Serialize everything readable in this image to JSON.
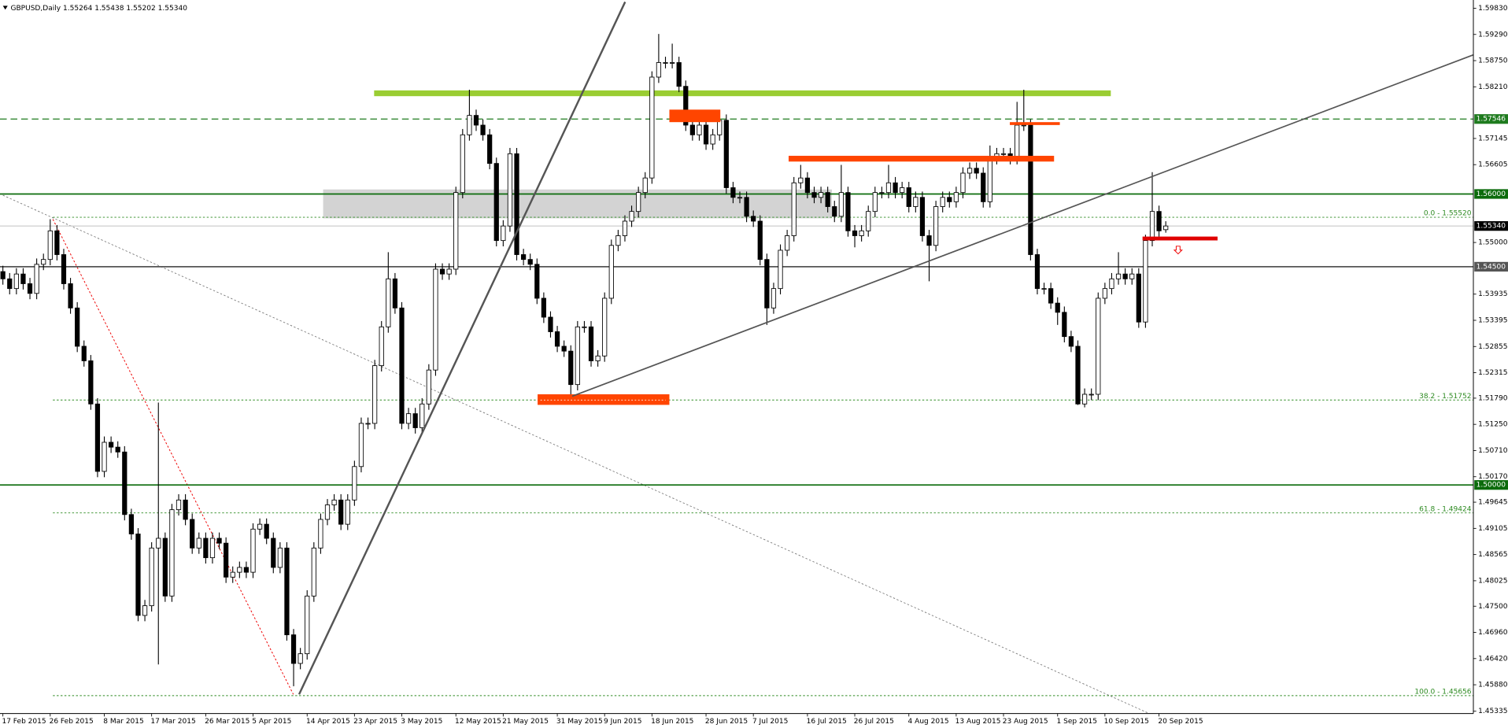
{
  "chart_data": {
    "type": "candlestick",
    "title": "GBPUSD,Daily  1.55264 1.55438 1.55202 1.55340",
    "categories": [
      "17 Feb 2015",
      null,
      null,
      null,
      null,
      null,
      null,
      "26 Feb 2015",
      null,
      null,
      null,
      null,
      null,
      null,
      null,
      "8 Mar 2015",
      null,
      null,
      null,
      null,
      null,
      null,
      "17 Mar 2015",
      null,
      null,
      null,
      null,
      null,
      null,
      null,
      "26 Mar 2015",
      null,
      null,
      null,
      null,
      null,
      null,
      "5 Apr 2015",
      null,
      null,
      null,
      null,
      null,
      null,
      null,
      "14 Apr 2015",
      null,
      null,
      null,
      null,
      null,
      null,
      "23 Apr 2015",
      null,
      null,
      null,
      null,
      null,
      null,
      "3 May 2015",
      null,
      null,
      null,
      null,
      null,
      null,
      null,
      "12 May 2015",
      null,
      null,
      null,
      null,
      null,
      null,
      "21 May 2015",
      null,
      null,
      null,
      null,
      null,
      null,
      null,
      "31 May 2015",
      null,
      null,
      null,
      null,
      null,
      null,
      "9 Jun 2015",
      null,
      null,
      null,
      null,
      null,
      null,
      "18 Jun 2015",
      null,
      null,
      null,
      null,
      null,
      null,
      null,
      "28 Jun 2015",
      null,
      null,
      null,
      null,
      null,
      null,
      "7 Jul 2015",
      null,
      null,
      null,
      null,
      null,
      null,
      null,
      "16 Jul 2015",
      null,
      null,
      null,
      null,
      null,
      null,
      "26 Jul 2015",
      null,
      null,
      null,
      null,
      null,
      null,
      null,
      "4 Aug 2015",
      null,
      null,
      null,
      null,
      null,
      null,
      "13 Aug 2015",
      null,
      null,
      null,
      null,
      null,
      null,
      "23 Aug 2015",
      null,
      null,
      null,
      null,
      null,
      null,
      null,
      "1 Sep 2015",
      null,
      null,
      null,
      null,
      null,
      null,
      "10 Sep 2015",
      null,
      null,
      null,
      null,
      null,
      null,
      null,
      "20 Sep 2015",
      null
    ],
    "open": [
      1.544,
      1.5425,
      1.5405,
      1.5435,
      1.5415,
      1.5395,
      1.5455,
      1.5465,
      1.5524,
      1.5475,
      1.5415,
      1.5365,
      1.5286,
      1.5256,
      1.5167,
      1.5028,
      1.5088,
      1.5078,
      1.5068,
      1.4939,
      1.4899,
      1.4731,
      1.4751,
      1.487,
      1.489,
      1.4771,
      1.4949,
      1.4969,
      1.4929,
      1.487,
      1.489,
      1.485,
      1.489,
      1.488,
      1.481,
      1.482,
      1.483,
      1.482,
      1.4909,
      1.4919,
      1.489,
      1.483,
      1.487,
      1.4691,
      1.4632,
      1.4652,
      1.4771,
      1.487,
      1.4929,
      1.4959,
      1.4969,
      1.4919,
      1.4969,
      1.5038,
      1.5127,
      1.5127,
      1.5246,
      1.5326,
      1.5425,
      1.5365,
      1.5127,
      1.5147,
      1.5118,
      1.5167,
      1.5237,
      1.5445,
      1.5435,
      1.5445,
      1.5603,
      1.5722,
      1.5762,
      1.5742,
      1.5722,
      1.5663,
      1.5504,
      1.5534,
      1.5683,
      1.5475,
      1.5465,
      1.5455,
      1.5385,
      1.5346,
      1.5316,
      1.5286,
      1.5276,
      1.5207,
      1.5326,
      1.5326,
      1.5256,
      1.5266,
      1.5385,
      1.5494,
      1.5514,
      1.5544,
      1.5564,
      1.5603,
      1.5633,
      1.5841,
      1.5871,
      1.5871,
      1.5871,
      1.5822,
      1.5742,
      1.5722,
      1.5742,
      1.5703,
      1.5722,
      1.5752,
      1.5613,
      1.5593,
      1.5593,
      1.5554,
      1.5544,
      1.5465,
      1.5365,
      1.5405,
      1.5484,
      1.5514,
      1.5623,
      1.5633,
      1.5603,
      1.5593,
      1.5603,
      1.5574,
      1.5554,
      1.5603,
      1.5524,
      1.5514,
      1.5524,
      1.5564,
      1.5603,
      1.5603,
      1.5623,
      1.5603,
      1.5613,
      1.5574,
      1.5593,
      1.5514,
      1.5494,
      1.5574,
      1.5593,
      1.5584,
      1.5603,
      1.5643,
      1.5653,
      1.5643,
      1.5584,
      1.5673,
      1.5683,
      1.5683,
      1.5673,
      1.5742,
      1.5742,
      1.5475,
      1.5405,
      1.5405,
      1.5375,
      1.5356,
      1.5306,
      1.5286,
      1.5167,
      1.5187,
      1.5187,
      1.5385,
      1.5405,
      1.5425,
      1.5435,
      1.5425,
      1.5435,
      1.5336,
      1.5504,
      1.5564,
      1.55264
    ],
    "high": [
      1.5452,
      1.5437,
      1.5447,
      1.5447,
      1.5427,
      1.5467,
      1.5477,
      1.5548,
      1.5536,
      1.5487,
      1.5427,
      1.5377,
      1.5298,
      1.5268,
      1.5179,
      1.51,
      1.51,
      1.509,
      1.508,
      1.4951,
      1.4911,
      1.4763,
      1.4882,
      1.517,
      1.4902,
      1.4961,
      1.4981,
      1.4981,
      1.4941,
      1.4902,
      1.4902,
      1.4902,
      1.4902,
      1.4892,
      1.4832,
      1.4842,
      1.4842,
      1.4921,
      1.4931,
      1.4931,
      1.4902,
      1.4882,
      1.4882,
      1.4703,
      1.4664,
      1.4783,
      1.4882,
      1.4941,
      1.4971,
      1.4981,
      1.4981,
      1.4981,
      1.505,
      1.5139,
      1.5139,
      1.5258,
      1.5338,
      1.548,
      1.5437,
      1.5377,
      1.5159,
      1.5159,
      1.5179,
      1.5249,
      1.5457,
      1.5457,
      1.5457,
      1.5615,
      1.5734,
      1.5815,
      1.5774,
      1.5754,
      1.5734,
      1.5675,
      1.5546,
      1.5695,
      1.5695,
      1.5487,
      1.5477,
      1.5467,
      1.5397,
      1.5358,
      1.5328,
      1.5298,
      1.5288,
      1.5338,
      1.5338,
      1.5338,
      1.5278,
      1.5397,
      1.5506,
      1.5526,
      1.5556,
      1.5576,
      1.5615,
      1.5645,
      1.5853,
      1.593,
      1.5883,
      1.591,
      1.5883,
      1.5834,
      1.5754,
      1.5754,
      1.5754,
      1.5734,
      1.5764,
      1.5764,
      1.5625,
      1.5605,
      1.5605,
      1.5566,
      1.5556,
      1.5477,
      1.5417,
      1.5496,
      1.5526,
      1.5635,
      1.566,
      1.5645,
      1.5615,
      1.5615,
      1.5615,
      1.5586,
      1.566,
      1.5615,
      1.5536,
      1.5536,
      1.5576,
      1.5615,
      1.5615,
      1.566,
      1.5635,
      1.5625,
      1.5625,
      1.5605,
      1.5605,
      1.5526,
      1.5586,
      1.5605,
      1.5605,
      1.5615,
      1.5655,
      1.5665,
      1.5665,
      1.5655,
      1.57,
      1.5695,
      1.5695,
      1.5695,
      1.579,
      1.5815,
      1.5754,
      1.5487,
      1.5417,
      1.5417,
      1.5387,
      1.5368,
      1.5318,
      1.5298,
      1.5199,
      1.5199,
      1.5397,
      1.5417,
      1.5437,
      1.548,
      1.5447,
      1.5447,
      1.5447,
      1.5516,
      1.5645,
      1.5576,
      1.55438
    ],
    "low": [
      1.5413,
      1.5393,
      1.5393,
      1.5403,
      1.5383,
      1.5383,
      1.5443,
      1.5453,
      1.5463,
      1.5403,
      1.5353,
      1.5274,
      1.5244,
      1.5155,
      1.5016,
      1.5016,
      1.5066,
      1.5056,
      1.4927,
      1.4887,
      1.4719,
      1.4719,
      1.4739,
      1.463,
      1.4759,
      1.4759,
      1.4937,
      1.4917,
      1.4858,
      1.4858,
      1.4838,
      1.4838,
      1.4868,
      1.4798,
      1.4798,
      1.4808,
      1.4808,
      1.4808,
      1.4897,
      1.4878,
      1.4818,
      1.4818,
      1.4679,
      1.4585,
      1.462,
      1.464,
      1.4759,
      1.4858,
      1.4917,
      1.4947,
      1.4907,
      1.4907,
      1.4957,
      1.5026,
      1.5115,
      1.5115,
      1.5234,
      1.5314,
      1.5353,
      1.5115,
      1.5115,
      1.5106,
      1.5106,
      1.5155,
      1.5225,
      1.5423,
      1.5423,
      1.5433,
      1.5591,
      1.571,
      1.573,
      1.571,
      1.5651,
      1.5492,
      1.5492,
      1.5522,
      1.5463,
      1.5453,
      1.5443,
      1.5373,
      1.5334,
      1.5304,
      1.5274,
      1.5264,
      1.518,
      1.5195,
      1.5314,
      1.5244,
      1.5244,
      1.5254,
      1.5373,
      1.5482,
      1.5502,
      1.5532,
      1.5552,
      1.5591,
      1.5621,
      1.5829,
      1.5859,
      1.5859,
      1.581,
      1.573,
      1.571,
      1.571,
      1.5691,
      1.5691,
      1.571,
      1.5601,
      1.5581,
      1.5581,
      1.5542,
      1.5532,
      1.5453,
      1.533,
      1.5353,
      1.5393,
      1.5472,
      1.5502,
      1.5611,
      1.5591,
      1.5581,
      1.5581,
      1.5562,
      1.5542,
      1.5542,
      1.5512,
      1.549,
      1.5502,
      1.5512,
      1.5552,
      1.5591,
      1.5591,
      1.5591,
      1.5591,
      1.5562,
      1.5562,
      1.5502,
      1.542,
      1.5482,
      1.5562,
      1.5572,
      1.5572,
      1.5591,
      1.5631,
      1.5631,
      1.5572,
      1.5572,
      1.5661,
      1.5671,
      1.5661,
      1.5661,
      1.573,
      1.5463,
      1.5393,
      1.5393,
      1.5363,
      1.533,
      1.5294,
      1.5274,
      1.5165,
      1.516,
      1.5175,
      1.5175,
      1.5373,
      1.5393,
      1.5413,
      1.5413,
      1.5413,
      1.5324,
      1.5324,
      1.5492,
      1.5512,
      1.55202
    ],
    "close": [
      1.5425,
      1.5405,
      1.5435,
      1.5415,
      1.5395,
      1.5455,
      1.5465,
      1.5524,
      1.5475,
      1.5415,
      1.5365,
      1.5286,
      1.5256,
      1.5167,
      1.5028,
      1.5088,
      1.5078,
      1.5068,
      1.4939,
      1.4899,
      1.4731,
      1.4751,
      1.487,
      1.489,
      1.4771,
      1.4949,
      1.4969,
      1.4929,
      1.487,
      1.489,
      1.485,
      1.489,
      1.488,
      1.481,
      1.482,
      1.483,
      1.482,
      1.4909,
      1.4919,
      1.489,
      1.483,
      1.487,
      1.4691,
      1.4632,
      1.4652,
      1.4771,
      1.487,
      1.4929,
      1.4959,
      1.4969,
      1.4919,
      1.4969,
      1.5038,
      1.5127,
      1.5127,
      1.5246,
      1.5326,
      1.5425,
      1.5365,
      1.5127,
      1.5147,
      1.5118,
      1.5167,
      1.5237,
      1.5445,
      1.5435,
      1.5445,
      1.5603,
      1.5722,
      1.5762,
      1.5742,
      1.5722,
      1.5663,
      1.5504,
      1.5534,
      1.5683,
      1.5475,
      1.5465,
      1.5455,
      1.5385,
      1.5346,
      1.5316,
      1.5286,
      1.5276,
      1.5207,
      1.5326,
      1.5326,
      1.5256,
      1.5266,
      1.5385,
      1.5494,
      1.5514,
      1.5544,
      1.5564,
      1.5603,
      1.5633,
      1.5841,
      1.5871,
      1.5871,
      1.5871,
      1.5822,
      1.5742,
      1.5722,
      1.5742,
      1.5703,
      1.5722,
      1.5752,
      1.5613,
      1.5593,
      1.5593,
      1.5554,
      1.5544,
      1.5465,
      1.5365,
      1.5405,
      1.5484,
      1.5514,
      1.5623,
      1.5633,
      1.5603,
      1.5593,
      1.5603,
      1.5574,
      1.5554,
      1.5603,
      1.5524,
      1.5514,
      1.5524,
      1.5564,
      1.5603,
      1.5603,
      1.5623,
      1.5603,
      1.5613,
      1.5574,
      1.5593,
      1.5514,
      1.5494,
      1.5574,
      1.5593,
      1.5584,
      1.5603,
      1.5643,
      1.5653,
      1.5643,
      1.5584,
      1.5673,
      1.5683,
      1.5683,
      1.5673,
      1.5742,
      1.5742,
      1.5475,
      1.5405,
      1.5405,
      1.5375,
      1.5356,
      1.5306,
      1.5286,
      1.5167,
      1.5187,
      1.5187,
      1.5385,
      1.5405,
      1.5425,
      1.5435,
      1.5425,
      1.5435,
      1.5336,
      1.5504,
      1.5564,
      1.5524,
      1.5534
    ],
    "ylim": [
      1.453,
      1.6
    ],
    "yticks": [
      {
        "value": 1.5983,
        "label": "1.59830"
      },
      {
        "value": 1.5929,
        "label": "1.59290"
      },
      {
        "value": 1.5875,
        "label": "1.58750"
      },
      {
        "value": 1.5821,
        "label": "1.58210"
      },
      {
        "value": 1.57145,
        "label": "1.57145"
      },
      {
        "value": 1.56605,
        "label": "1.56605"
      },
      {
        "value": 1.55,
        "label": "1.55000"
      },
      {
        "value": 1.53935,
        "label": "1.53935"
      },
      {
        "value": 1.53395,
        "label": "1.53395"
      },
      {
        "value": 1.52855,
        "label": "1.52855"
      },
      {
        "value": 1.52315,
        "label": "1.52315"
      },
      {
        "value": 1.5179,
        "label": "1.51790"
      },
      {
        "value": 1.5125,
        "label": "1.51250"
      },
      {
        "value": 1.5071,
        "label": "1.50710"
      },
      {
        "value": 1.5017,
        "label": "1.50170"
      },
      {
        "value": 1.49645,
        "label": "1.49645"
      },
      {
        "value": 1.49105,
        "label": "1.49105"
      },
      {
        "value": 1.48565,
        "label": "1.48565"
      },
      {
        "value": 1.48025,
        "label": "1.48025"
      },
      {
        "value": 1.475,
        "label": "1.47500"
      },
      {
        "value": 1.4696,
        "label": "1.46960"
      },
      {
        "value": 1.4642,
        "label": "1.46420"
      },
      {
        "value": 1.4588,
        "label": "1.45880"
      },
      {
        "value": 1.45335,
        "label": "1.45335"
      }
    ],
    "levels": [
      {
        "value": 1.57546,
        "label": "1.57546",
        "color": "#1e7b1e",
        "line_style": "dashed"
      },
      {
        "value": 1.56,
        "label": "1.56000",
        "color": "#0b6b0b",
        "line_style": "solid"
      },
      {
        "value": 1.5534,
        "label": "1.55340",
        "color": "#000000",
        "line_style": "thin"
      },
      {
        "value": 1.545,
        "label": "1.54500",
        "color": "#555555",
        "line_style": "solid"
      },
      {
        "value": 1.5,
        "label": "1.50000",
        "color": "#0b6b0b",
        "line_style": "solid"
      }
    ],
    "fib_levels": [
      {
        "value": 1.5552,
        "label": "0.0 - 1.55520"
      },
      {
        "value": 1.51752,
        "label": "38.2 - 1.51752"
      },
      {
        "value": 1.49424,
        "label": "61.8 - 1.49424"
      },
      {
        "value": 1.45656,
        "label": "100.0 - 1.45656"
      }
    ],
    "fib_color": "#2e8b22",
    "bull_color": "#ffffff",
    "bear_color": "#000000"
  }
}
